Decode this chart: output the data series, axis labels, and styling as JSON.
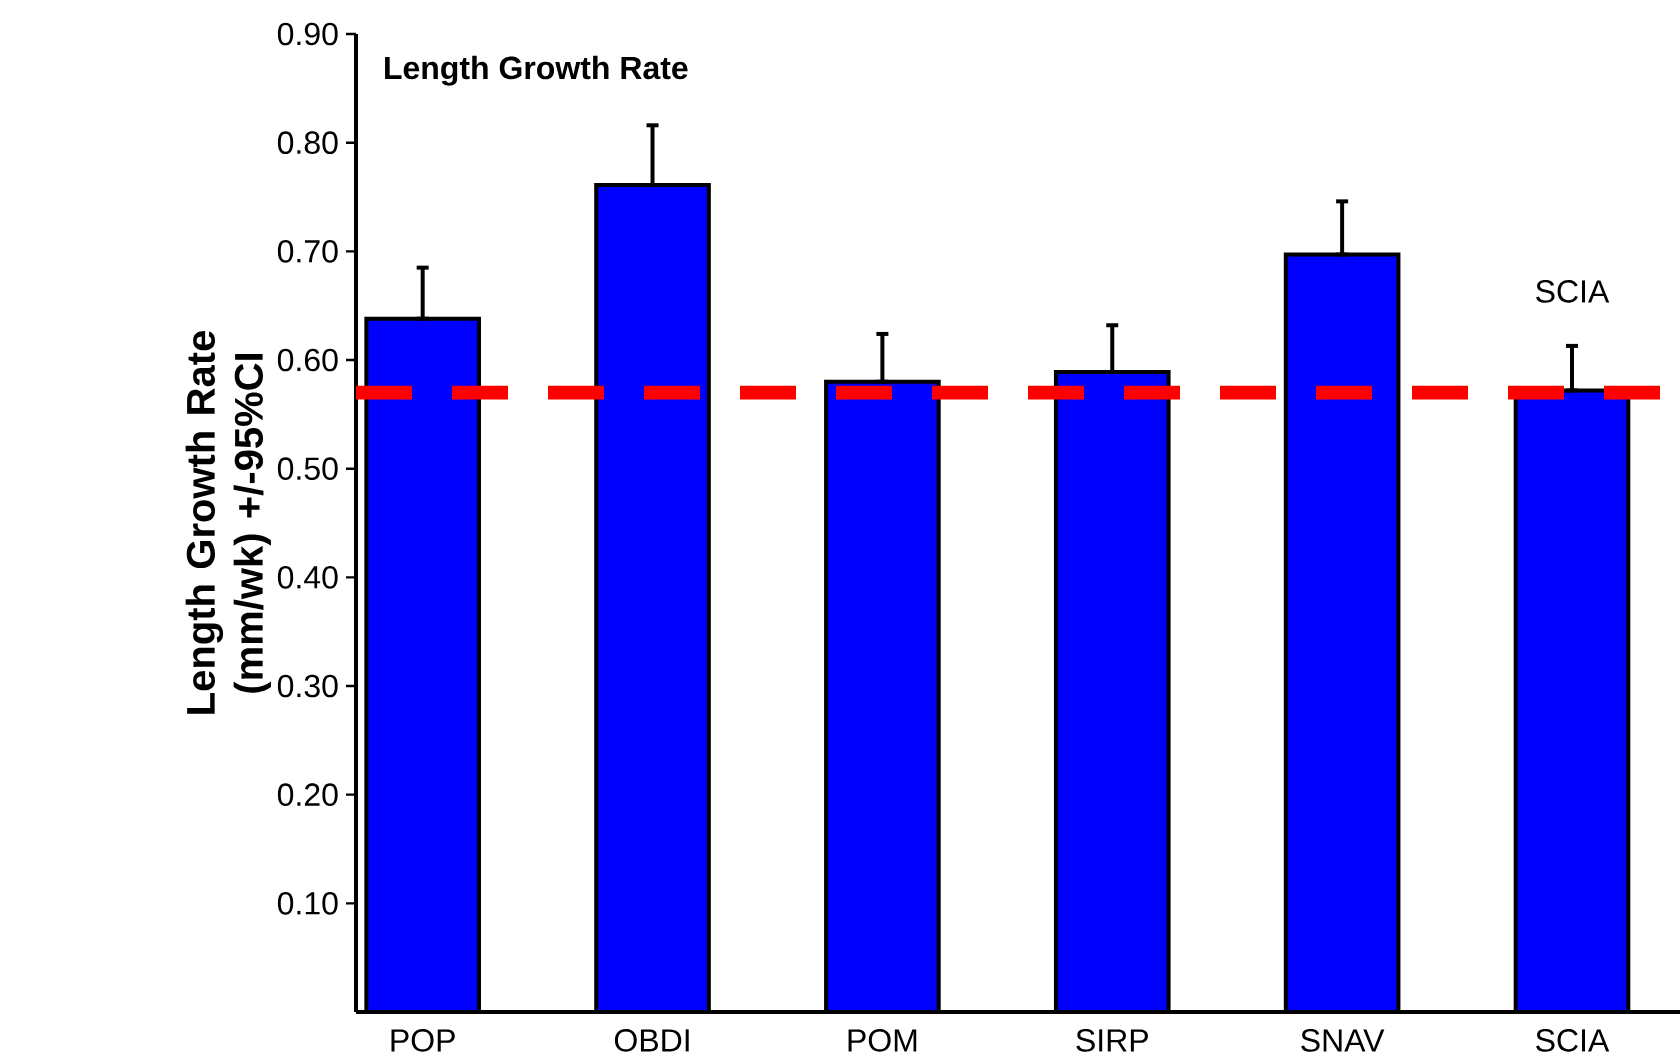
{
  "chart_data": {
    "type": "bar",
    "title": "Length Growth Rate",
    "ylabel": "Length Growth Rate (mm/wk) +/-95%CI",
    "categories": [
      "POP",
      "OBDI",
      "POM",
      "SIRP",
      "SNAV",
      "SCIA"
    ],
    "values": [
      0.638,
      0.761,
      0.58,
      0.589,
      0.697,
      0.572
    ],
    "errors": [
      [
        0.638,
        0.685
      ],
      [
        0.761,
        0.816
      ],
      [
        0.58,
        0.624
      ],
      [
        0.589,
        0.632
      ],
      [
        0.697,
        0.746
      ],
      [
        0.572,
        0.613
      ]
    ],
    "color": "#0000ff",
    "ylim": [
      0,
      0.9
    ],
    "yticks": [
      {
        "value": 0.1,
        "label": "0.10"
      },
      {
        "value": 0.2,
        "label": "0.20"
      },
      {
        "value": 0.3,
        "label": "0.30"
      },
      {
        "value": 0.4,
        "label": "0.40"
      },
      {
        "value": 0.5,
        "label": "0.50"
      },
      {
        "value": 0.6,
        "label": "0.60"
      },
      {
        "value": 0.7,
        "label": "0.70"
      },
      {
        "value": 0.8,
        "label": "0.80"
      },
      {
        "value": 0.9,
        "label": "0.90"
      }
    ],
    "ref_lines": [
      {
        "axis": "y",
        "value": 0.57,
        "color": "#ff0000",
        "line_style": "dashed"
      }
    ],
    "annotations": [
      "SCIA"
    ]
  }
}
